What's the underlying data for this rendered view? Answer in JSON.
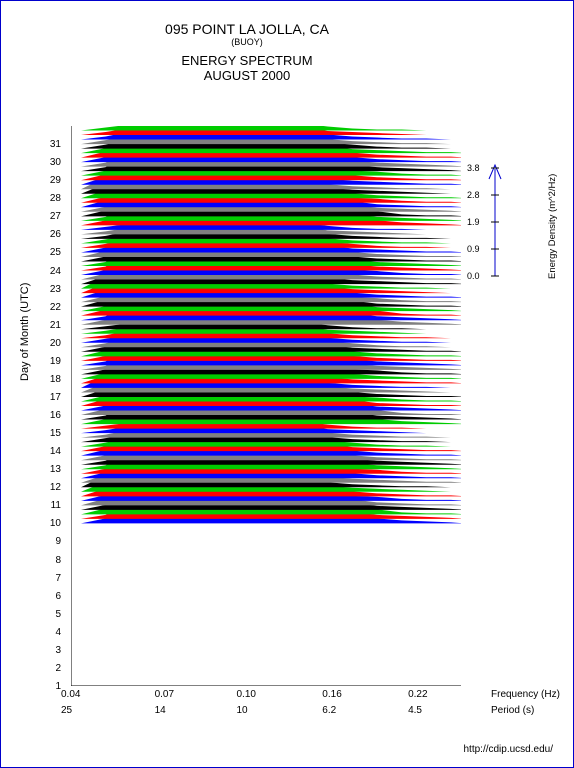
{
  "title": {
    "main": "095 POINT LA JOLLA, CA",
    "sub": "(BUOY)",
    "spectrum": "ENERGY SPECTRUM",
    "date": "AUGUST 2000"
  },
  "chart": {
    "type": "stacked-ridgeline",
    "background_color": "#ffffff",
    "border_color": "#0000cc",
    "y_axis": {
      "label": "Day of Month (UTC)",
      "min": 1,
      "max": 32,
      "ticks": [
        1,
        2,
        3,
        4,
        5,
        6,
        7,
        8,
        9,
        10,
        11,
        12,
        13,
        14,
        15,
        16,
        17,
        18,
        19,
        20,
        21,
        22,
        23,
        24,
        25,
        26,
        27,
        28,
        29,
        30,
        31
      ]
    },
    "x_axis_top": {
      "label": "Frequency (Hz)",
      "ticks": [
        "0.04",
        "0.07",
        "0.10",
        "0.16",
        "0.22"
      ],
      "positions": [
        0.0,
        0.24,
        0.45,
        0.67,
        0.89
      ]
    },
    "x_axis_bottom": {
      "label": "Period (s)",
      "ticks": [
        "25",
        "14",
        "10",
        "6.2",
        "4.5"
      ],
      "positions": [
        0.0,
        0.24,
        0.45,
        0.67,
        0.89
      ]
    },
    "legend": {
      "label": "Energy Density (m^2/Hz)",
      "ticks": [
        "3.8",
        "2.8",
        "1.9",
        "0.9",
        "0.0"
      ],
      "arrow_color": "#0000cc"
    },
    "series_colors": [
      "#0000ff",
      "#ff0000",
      "#00cc00",
      "#000000",
      "#808080"
    ],
    "ridges_data_start_day": 10,
    "ridges_per_day": 4,
    "ridge_profiles": [
      [
        0,
        5,
        15,
        45,
        30,
        20,
        25,
        15,
        28,
        22,
        12,
        8,
        5,
        3,
        2,
        1
      ],
      [
        0,
        4,
        18,
        40,
        35,
        22,
        20,
        18,
        30,
        20,
        10,
        7,
        4,
        3,
        2,
        1
      ],
      [
        0,
        6,
        20,
        38,
        32,
        25,
        18,
        20,
        32,
        18,
        11,
        6,
        5,
        2,
        1,
        1
      ],
      [
        0,
        5,
        22,
        42,
        28,
        24,
        16,
        22,
        30,
        16,
        9,
        7,
        4,
        3,
        2,
        1
      ],
      [
        0,
        7,
        25,
        48,
        30,
        20,
        15,
        18,
        26,
        14,
        10,
        6,
        3,
        2,
        1,
        1
      ],
      [
        0,
        6,
        28,
        50,
        32,
        18,
        14,
        16,
        24,
        15,
        8,
        5,
        4,
        2,
        1,
        1
      ],
      [
        0,
        8,
        30,
        46,
        28,
        16,
        12,
        14,
        22,
        12,
        7,
        5,
        3,
        2,
        1,
        1
      ],
      [
        0,
        10,
        35,
        44,
        26,
        15,
        10,
        12,
        20,
        10,
        6,
        4,
        3,
        2,
        1,
        0
      ],
      [
        0,
        12,
        38,
        40,
        24,
        14,
        8,
        10,
        18,
        8,
        5,
        3,
        2,
        1,
        1,
        0
      ],
      [
        0,
        8,
        32,
        48,
        30,
        18,
        12,
        14,
        20,
        10,
        6,
        4,
        3,
        2,
        1,
        1
      ],
      [
        0,
        6,
        28,
        52,
        34,
        20,
        14,
        16,
        22,
        12,
        7,
        5,
        3,
        2,
        1,
        1
      ],
      [
        0,
        5,
        24,
        50,
        36,
        22,
        16,
        24,
        28,
        14,
        8,
        5,
        4,
        2,
        1,
        1
      ],
      [
        0,
        4,
        20,
        45,
        38,
        24,
        18,
        28,
        30,
        16,
        9,
        6,
        4,
        3,
        2,
        1
      ],
      [
        0,
        4,
        18,
        42,
        40,
        26,
        20,
        30,
        32,
        18,
        10,
        6,
        4,
        3,
        2,
        1
      ],
      [
        0,
        5,
        16,
        40,
        42,
        28,
        22,
        28,
        30,
        16,
        9,
        5,
        3,
        2,
        1,
        1
      ],
      [
        0,
        6,
        14,
        38,
        40,
        26,
        24,
        26,
        28,
        14,
        8,
        5,
        3,
        2,
        1,
        1
      ],
      [
        0,
        5,
        12,
        35,
        38,
        24,
        22,
        24,
        26,
        12,
        7,
        4,
        3,
        2,
        1,
        1
      ],
      [
        0,
        4,
        10,
        32,
        36,
        22,
        20,
        22,
        24,
        11,
        6,
        4,
        2,
        1,
        1,
        0
      ],
      [
        0,
        4,
        8,
        30,
        34,
        20,
        18,
        20,
        22,
        10,
        5,
        3,
        2,
        1,
        1,
        0
      ],
      [
        0,
        3,
        8,
        28,
        32,
        18,
        16,
        18,
        20,
        9,
        5,
        3,
        2,
        1,
        1,
        0
      ],
      [
        0,
        3,
        7,
        26,
        30,
        16,
        14,
        16,
        18,
        8,
        4,
        3,
        2,
        1,
        0,
        0
      ],
      [
        0,
        3,
        6,
        24,
        28,
        15,
        12,
        14,
        16,
        7,
        4,
        2,
        1,
        1,
        0,
        0
      ]
    ]
  },
  "footer": "http://cdip.ucsd.edu/"
}
